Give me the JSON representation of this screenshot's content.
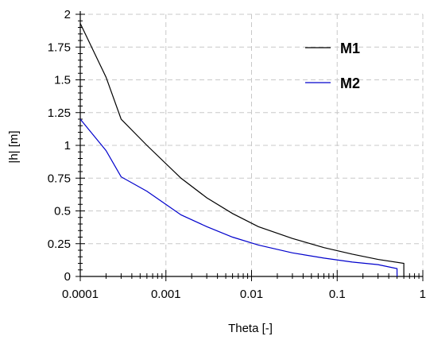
{
  "chart_data": {
    "type": "line",
    "title": "",
    "xlabel": "Theta [-]",
    "ylabel": "|h| [m]",
    "xscale": "log",
    "xlim": [
      0.0001,
      1
    ],
    "ylim": [
      0,
      2
    ],
    "grid": true,
    "legend_position": "top-right",
    "x_ticks": [
      "0.0001",
      "0.001",
      "0.01",
      "0.1",
      "1"
    ],
    "y_ticks": [
      "0",
      "0.25",
      "0.5",
      "0.75",
      "1",
      "1.25",
      "1.5",
      "1.75",
      "2"
    ],
    "series": [
      {
        "name": "M1",
        "color": "#000000",
        "points": [
          [
            0.0001,
            1.93
          ],
          [
            0.0002,
            1.52
          ],
          [
            0.0003,
            1.2
          ],
          [
            0.0006,
            1.0
          ],
          [
            0.0015,
            0.75
          ],
          [
            0.003,
            0.6
          ],
          [
            0.006,
            0.48
          ],
          [
            0.012,
            0.38
          ],
          [
            0.03,
            0.29
          ],
          [
            0.07,
            0.22
          ],
          [
            0.15,
            0.17
          ],
          [
            0.3,
            0.13
          ],
          [
            0.6,
            0.1
          ],
          [
            0.6,
            0.0
          ]
        ]
      },
      {
        "name": "M2",
        "color": "#0000cc",
        "points": [
          [
            0.0001,
            1.2
          ],
          [
            0.0002,
            0.96
          ],
          [
            0.0003,
            0.76
          ],
          [
            0.0006,
            0.65
          ],
          [
            0.0015,
            0.47
          ],
          [
            0.003,
            0.38
          ],
          [
            0.006,
            0.3
          ],
          [
            0.012,
            0.24
          ],
          [
            0.03,
            0.18
          ],
          [
            0.07,
            0.14
          ],
          [
            0.15,
            0.11
          ],
          [
            0.3,
            0.09
          ],
          [
            0.5,
            0.06
          ],
          [
            0.5,
            0.0
          ]
        ]
      }
    ]
  }
}
